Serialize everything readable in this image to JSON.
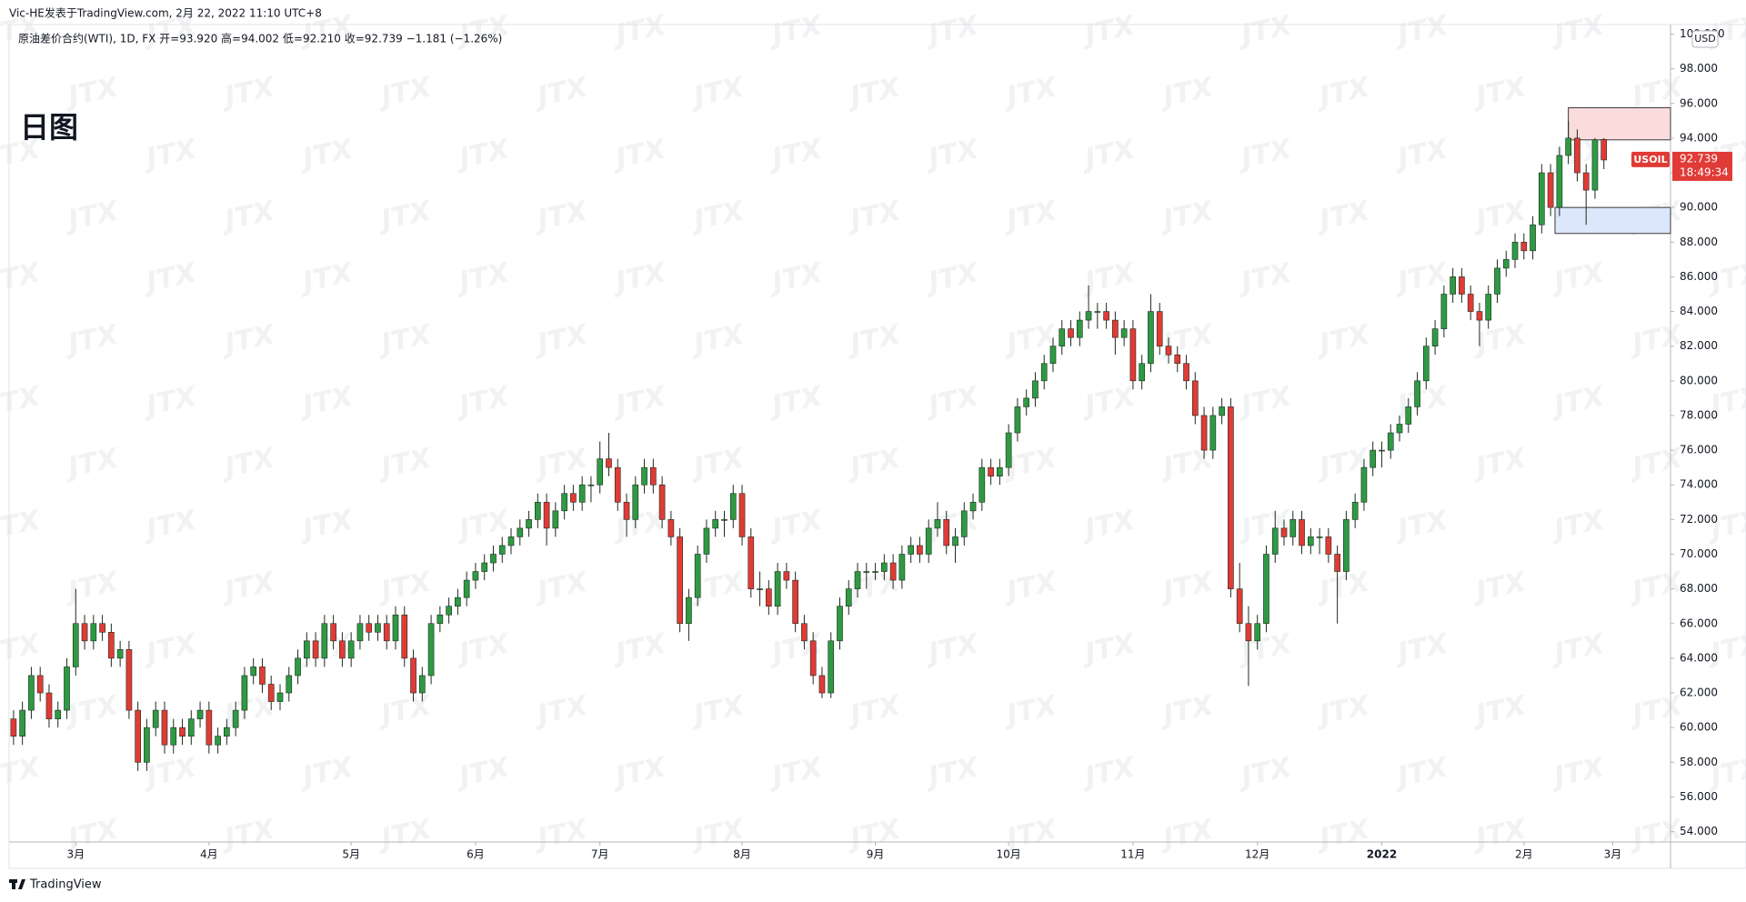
{
  "header": "Vic-HE发表于TradingView.com, 2月 22, 2022 11:10 UTC+8",
  "footer": "TradingView",
  "chart_data": {
    "type": "candlestick",
    "legend": "原油差价合约(WTI), 1D, FX  开=93.920  高=94.002  低=92.210  收=92.739  −1.181 (−1.26%)",
    "title": "日图",
    "currency": "USD",
    "symbol": "USOIL",
    "countdown": "18:49:34",
    "watermark": "JTX",
    "up_color": "#2e9a43",
    "down_color": "#e03b36",
    "grid": false,
    "ylim": [
      53.4,
      100.55
    ],
    "yticks": [
      {
        "value": 54,
        "label": "54.000"
      },
      {
        "value": 56,
        "label": "56.000"
      },
      {
        "value": 58,
        "label": "58.000"
      },
      {
        "value": 60,
        "label": "60.000"
      },
      {
        "value": 62,
        "label": "62.000"
      },
      {
        "value": 64,
        "label": "64.000"
      },
      {
        "value": 66,
        "label": "66.000"
      },
      {
        "value": 68,
        "label": "68.000"
      },
      {
        "value": 70,
        "label": "70.000"
      },
      {
        "value": 72,
        "label": "72.000"
      },
      {
        "value": 74,
        "label": "74.000"
      },
      {
        "value": 76,
        "label": "76.000"
      },
      {
        "value": 78,
        "label": "78.000"
      },
      {
        "value": 80,
        "label": "80.000"
      },
      {
        "value": 82,
        "label": "82.000"
      },
      {
        "value": 84,
        "label": "84.000"
      },
      {
        "value": 86,
        "label": "86.000"
      },
      {
        "value": 88,
        "label": "88.000"
      },
      {
        "value": 90,
        "label": "90.000"
      },
      {
        "value": 92,
        "label": "92.000"
      },
      {
        "value": 94,
        "label": "94.000"
      },
      {
        "value": 96,
        "label": "96.000"
      },
      {
        "value": 98,
        "label": "98.000"
      },
      {
        "value": 100,
        "label": "100.000"
      }
    ],
    "xlim": [
      -0.5,
      186.5
    ],
    "xticks": [
      {
        "value": 7,
        "label": "3月"
      },
      {
        "value": 22,
        "label": "4月"
      },
      {
        "value": 38,
        "label": "5月"
      },
      {
        "value": 52,
        "label": "6月"
      },
      {
        "value": 66,
        "label": "7月"
      },
      {
        "value": 82,
        "label": "8月"
      },
      {
        "value": 97,
        "label": "9月"
      },
      {
        "value": 112,
        "label": "10月"
      },
      {
        "value": 126,
        "label": "11月"
      },
      {
        "value": 140,
        "label": "12月"
      },
      {
        "value": 154,
        "label": "2022"
      },
      {
        "value": 170,
        "label": "2月"
      },
      {
        "value": 180,
        "label": "3月"
      }
    ],
    "zones": [
      {
        "from": 175,
        "low": 93.9,
        "high": 95.75,
        "color": "#fbdcdc"
      },
      {
        "from": 173.5,
        "low": 88.5,
        "high": 90,
        "color": "#dde7fb"
      }
    ],
    "ohlc": [
      [
        60.5,
        61,
        59,
        59.5
      ],
      [
        59.5,
        61.5,
        59,
        61
      ],
      [
        61,
        63.5,
        60.5,
        63
      ],
      [
        63,
        63.5,
        61.5,
        62
      ],
      [
        62,
        62.5,
        60,
        60.5
      ],
      [
        60.5,
        61.5,
        60,
        61
      ],
      [
        61,
        64,
        60.5,
        63.5
      ],
      [
        63.5,
        68,
        63,
        66
      ],
      [
        66,
        66.5,
        64.5,
        65
      ],
      [
        65,
        66.5,
        64.5,
        66
      ],
      [
        66,
        66.5,
        65,
        65.5
      ],
      [
        65.5,
        66,
        63.5,
        64
      ],
      [
        64,
        65,
        63.5,
        64.5
      ],
      [
        64.5,
        65,
        60.5,
        61
      ],
      [
        61,
        61.5,
        57.5,
        58
      ],
      [
        58,
        60.5,
        57.5,
        60
      ],
      [
        60,
        61.5,
        59.5,
        61
      ],
      [
        61,
        61.5,
        58.5,
        59
      ],
      [
        59,
        60.5,
        58.5,
        60
      ],
      [
        60,
        60.5,
        59,
        59.5
      ],
      [
        59.5,
        61,
        59,
        60.5
      ],
      [
        60.5,
        61.5,
        60,
        61
      ],
      [
        61,
        61.5,
        58.5,
        59
      ],
      [
        59,
        60,
        58.5,
        59.5
      ],
      [
        59.5,
        60.5,
        59,
        60
      ],
      [
        60,
        61.5,
        59.5,
        61
      ],
      [
        61,
        63.5,
        60.5,
        63
      ],
      [
        63,
        64,
        62.5,
        63.5
      ],
      [
        63.5,
        64,
        62,
        62.5
      ],
      [
        62.5,
        63,
        61,
        61.5
      ],
      [
        61.5,
        62.5,
        61,
        62
      ],
      [
        62,
        63.5,
        61.5,
        63
      ],
      [
        63,
        64.5,
        62.5,
        64
      ],
      [
        64,
        65.5,
        63.5,
        65
      ],
      [
        65,
        65.5,
        63.5,
        64
      ],
      [
        64,
        66.5,
        63.5,
        66
      ],
      [
        66,
        66.5,
        64.5,
        65
      ],
      [
        65,
        65.5,
        63.5,
        64
      ],
      [
        64,
        65.5,
        63.5,
        65
      ],
      [
        65,
        66.5,
        64.5,
        66
      ],
      [
        66,
        66.5,
        65,
        65.5
      ],
      [
        65.5,
        66.5,
        65,
        66
      ],
      [
        66,
        66.5,
        64.5,
        65
      ],
      [
        65,
        67,
        64.5,
        66.5
      ],
      [
        66.5,
        67,
        63.5,
        64
      ],
      [
        64,
        64.5,
        61.5,
        62
      ],
      [
        62,
        63.5,
        61.5,
        63
      ],
      [
        63,
        66.5,
        62.5,
        66
      ],
      [
        66,
        67,
        65.5,
        66.5
      ],
      [
        66.5,
        67.5,
        66,
        67
      ],
      [
        67,
        68,
        66.5,
        67.5
      ],
      [
        67.5,
        69,
        67,
        68.5
      ],
      [
        68.5,
        69.5,
        68,
        69
      ],
      [
        69,
        70,
        68.5,
        69.5
      ],
      [
        69.5,
        70.5,
        69,
        70
      ],
      [
        70,
        71,
        69.5,
        70.5
      ],
      [
        70.5,
        71.5,
        70,
        71
      ],
      [
        71,
        72,
        70.5,
        71.5
      ],
      [
        71.5,
        72.5,
        71,
        72
      ],
      [
        72,
        73.5,
        71.5,
        73
      ],
      [
        73,
        73.5,
        70.5,
        71.5
      ],
      [
        71.5,
        73,
        71,
        72.5
      ],
      [
        72.5,
        74,
        72,
        73.5
      ],
      [
        73.5,
        74,
        72.5,
        73
      ],
      [
        73,
        74.5,
        72.5,
        74
      ],
      [
        74,
        74.5,
        73,
        74
      ],
      [
        74,
        76.5,
        73.5,
        75.5
      ],
      [
        75.5,
        77,
        74.5,
        75
      ],
      [
        75,
        75.5,
        72.5,
        73
      ],
      [
        73,
        73.5,
        71,
        72
      ],
      [
        72,
        74.5,
        71.5,
        74
      ],
      [
        74,
        75.5,
        73.5,
        75
      ],
      [
        75,
        75.5,
        73.5,
        74
      ],
      [
        74,
        74.5,
        71.5,
        72
      ],
      [
        72,
        72.5,
        70.5,
        71
      ],
      [
        71,
        71.5,
        65.5,
        66
      ],
      [
        66,
        68,
        65,
        67.5
      ],
      [
        67.5,
        70.5,
        67,
        70
      ],
      [
        70,
        72,
        69.5,
        71.5
      ],
      [
        71.5,
        72.5,
        71,
        72
      ],
      [
        72,
        72.5,
        71,
        72
      ],
      [
        72,
        74,
        71.5,
        73.5
      ],
      [
        73.5,
        74,
        70.5,
        71
      ],
      [
        71,
        71.5,
        67.5,
        68
      ],
      [
        68,
        69,
        67,
        68
      ],
      [
        68,
        68.5,
        66.5,
        67
      ],
      [
        67,
        69.5,
        66.5,
        69
      ],
      [
        69,
        69.5,
        68,
        68.5
      ],
      [
        68.5,
        69,
        65.5,
        66
      ],
      [
        66,
        66.5,
        64.5,
        65
      ],
      [
        65,
        65.5,
        62.5,
        63
      ],
      [
        63,
        63.5,
        61.7,
        62
      ],
      [
        62,
        65.5,
        61.7,
        65
      ],
      [
        65,
        67.5,
        64.5,
        67
      ],
      [
        67,
        68.5,
        66.5,
        68
      ],
      [
        68,
        69.5,
        67.5,
        69
      ],
      [
        69,
        69.5,
        68,
        69
      ],
      [
        69,
        69.5,
        68.5,
        69
      ],
      [
        69,
        70,
        68.5,
        69.5
      ],
      [
        69.5,
        70,
        68,
        68.5
      ],
      [
        68.5,
        70.5,
        68,
        70
      ],
      [
        70,
        71,
        69.5,
        70.5
      ],
      [
        70.5,
        71,
        69.5,
        70
      ],
      [
        70,
        72,
        69.5,
        71.5
      ],
      [
        71.5,
        73,
        71,
        72
      ],
      [
        72,
        72.5,
        70,
        70.5
      ],
      [
        70.5,
        71.5,
        69.5,
        71
      ],
      [
        71,
        73,
        70.5,
        72.5
      ],
      [
        72.5,
        73.5,
        72,
        73
      ],
      [
        73,
        75.5,
        72.5,
        75
      ],
      [
        75,
        75.5,
        74,
        74.5
      ],
      [
        74.5,
        75.5,
        74,
        75
      ],
      [
        75,
        77.5,
        74.5,
        77
      ],
      [
        77,
        79,
        76.5,
        78.5
      ],
      [
        78.5,
        79.5,
        78,
        79
      ],
      [
        79,
        80.5,
        78.5,
        80
      ],
      [
        80,
        81.5,
        79.5,
        81
      ],
      [
        81,
        82.5,
        80.5,
        82
      ],
      [
        82,
        83.5,
        81.5,
        83
      ],
      [
        83,
        83.5,
        82,
        82.5
      ],
      [
        82.5,
        84,
        82,
        83.5
      ],
      [
        83.5,
        85.5,
        83,
        84
      ],
      [
        84,
        84.5,
        83,
        84
      ],
      [
        84,
        84.5,
        83,
        83.5
      ],
      [
        83.5,
        84,
        81.5,
        82.5
      ],
      [
        82.5,
        83.5,
        82,
        83
      ],
      [
        83,
        83.5,
        79.5,
        80
      ],
      [
        80,
        81.5,
        79.5,
        81
      ],
      [
        81,
        85,
        80.5,
        84
      ],
      [
        84,
        84.5,
        81.5,
        82
      ],
      [
        82,
        82.5,
        81,
        81.5
      ],
      [
        81.5,
        82,
        80.5,
        81
      ],
      [
        81,
        81.5,
        79.5,
        80
      ],
      [
        80,
        80.5,
        77.5,
        78
      ],
      [
        78,
        78.5,
        75.5,
        76
      ],
      [
        76,
        78.5,
        75.5,
        78
      ],
      [
        78,
        79,
        77.5,
        78.5
      ],
      [
        78.5,
        79,
        67.5,
        68
      ],
      [
        68,
        69.5,
        65.5,
        66
      ],
      [
        66,
        67,
        62.4,
        65
      ],
      [
        65,
        66.5,
        64.5,
        66
      ],
      [
        66,
        70.5,
        65.5,
        70
      ],
      [
        70,
        72.5,
        69.5,
        71.5
      ],
      [
        71.5,
        72,
        70.5,
        71
      ],
      [
        71,
        72.5,
        70.5,
        72
      ],
      [
        72,
        72.5,
        70,
        70.5
      ],
      [
        70.5,
        71.5,
        70,
        71
      ],
      [
        71,
        71.5,
        70,
        71
      ],
      [
        71,
        71.5,
        69.5,
        70
      ],
      [
        70,
        70.5,
        66,
        69
      ],
      [
        69,
        72.5,
        68.5,
        72
      ],
      [
        72,
        73.5,
        71.5,
        73
      ],
      [
        73,
        75.5,
        72.5,
        75
      ],
      [
        75,
        76.5,
        74.5,
        76
      ],
      [
        76,
        76.5,
        75,
        76
      ],
      [
        76,
        77.5,
        75.5,
        77
      ],
      [
        77,
        78,
        76.5,
        77.5
      ],
      [
        77.5,
        79,
        77,
        78.5
      ],
      [
        78.5,
        80.5,
        78,
        80
      ],
      [
        80,
        82.5,
        79.5,
        82
      ],
      [
        82,
        83.5,
        81.5,
        83
      ],
      [
        83,
        85.5,
        82.5,
        85
      ],
      [
        85,
        86.5,
        84.5,
        86
      ],
      [
        86,
        86.5,
        84.5,
        85
      ],
      [
        85,
        85.5,
        83.5,
        84
      ],
      [
        84,
        84.5,
        82,
        83.5
      ],
      [
        83.5,
        85.5,
        83,
        85
      ],
      [
        85,
        87,
        84.5,
        86.5
      ],
      [
        86.5,
        87.5,
        86,
        87
      ],
      [
        87,
        88.5,
        86.5,
        88
      ],
      [
        88,
        88.5,
        87,
        87.5
      ],
      [
        87.5,
        89.5,
        87,
        89
      ],
      [
        89,
        92.5,
        88.5,
        92
      ],
      [
        92,
        92.5,
        89.5,
        90
      ],
      [
        90,
        93.5,
        89.5,
        93
      ],
      [
        93,
        95,
        92.5,
        94
      ],
      [
        94,
        94.5,
        91.5,
        92
      ],
      [
        92,
        92.5,
        89,
        91
      ],
      [
        91,
        94,
        90.5,
        93.9
      ],
      [
        93.92,
        94.002,
        92.21,
        92.739
      ]
    ]
  }
}
